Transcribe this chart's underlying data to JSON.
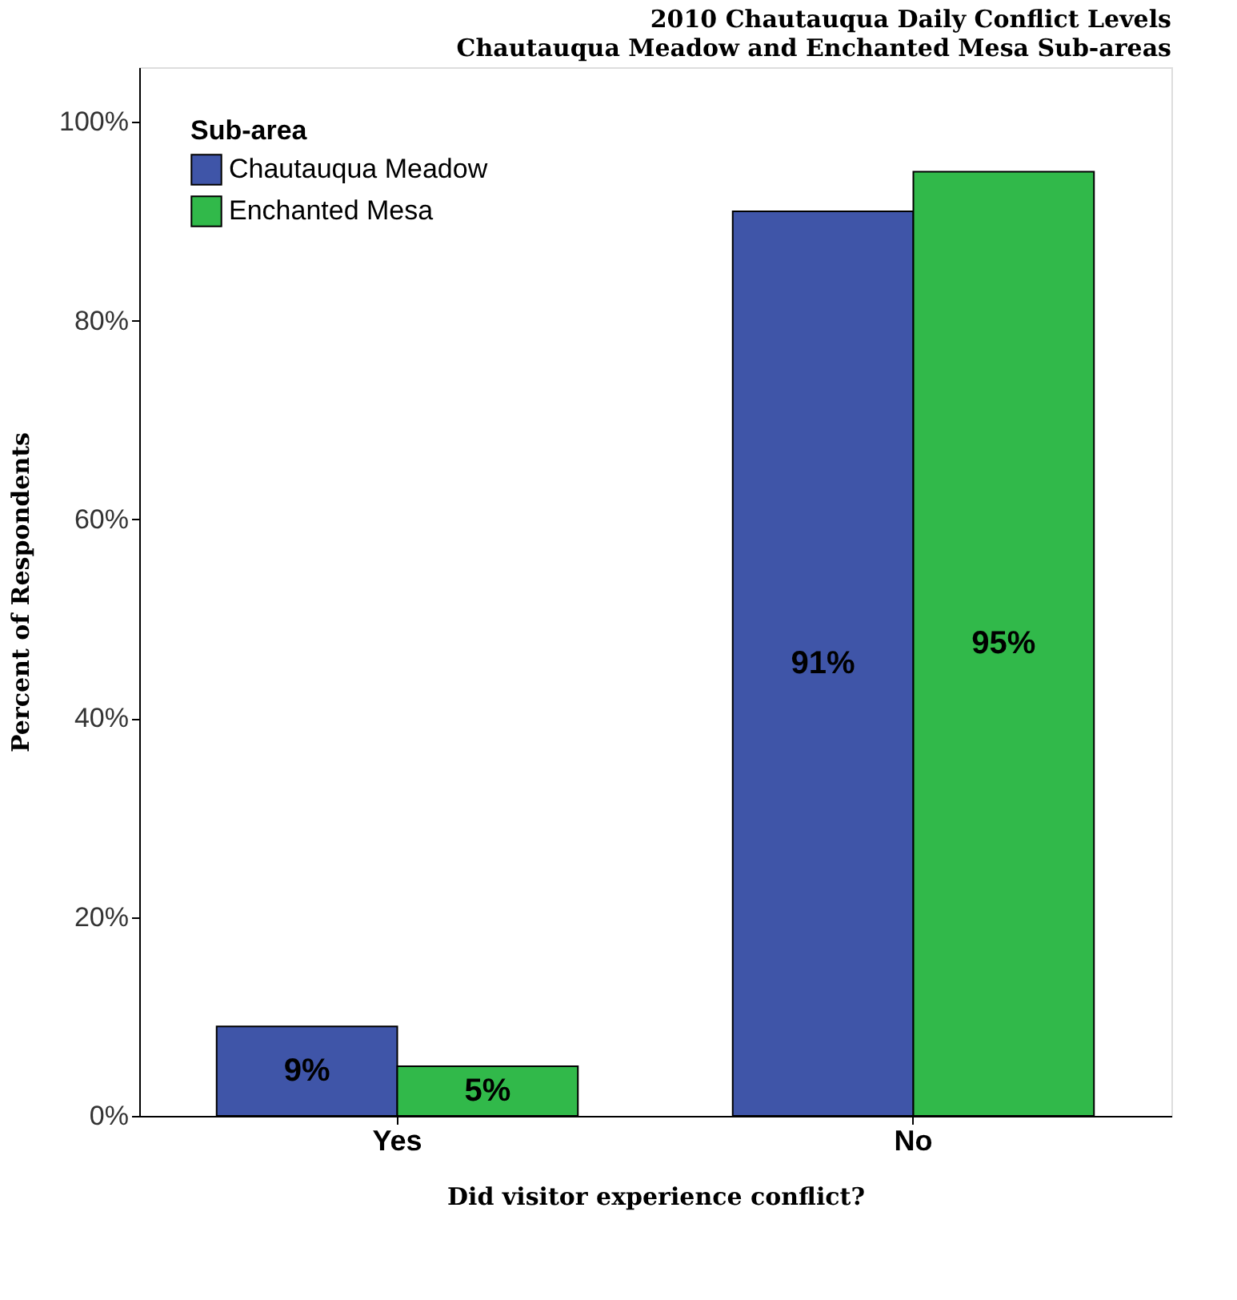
{
  "chart_data": {
    "type": "bar",
    "title": "2010 Chautauqua Daily Conflict Levels",
    "subtitle": "Chautauqua Meadow and Enchanted Mesa Sub-areas",
    "xlabel": "Did visitor experience conflict?",
    "ylabel": "Percent of Respondents",
    "categories": [
      "Yes",
      "No"
    ],
    "series": [
      {
        "name": "Chautauqua Meadow",
        "color": "#3f55a8",
        "values": [
          9,
          91
        ],
        "value_labels": [
          "9%",
          "91%"
        ]
      },
      {
        "name": "Enchanted Mesa",
        "color": "#31b94a",
        "values": [
          5,
          95
        ],
        "value_labels": [
          "5%",
          "95%"
        ]
      }
    ],
    "ylim": [
      0,
      105.5
    ],
    "yticks": [
      {
        "value": 0,
        "label": "0%"
      },
      {
        "value": 20,
        "label": "20%"
      },
      {
        "value": 40,
        "label": "40%"
      },
      {
        "value": 60,
        "label": "60%"
      },
      {
        "value": 80,
        "label": "80%"
      },
      {
        "value": 100,
        "label": "100%"
      }
    ],
    "legend_title": "Sub-area",
    "legend": "top left",
    "grid": false
  }
}
